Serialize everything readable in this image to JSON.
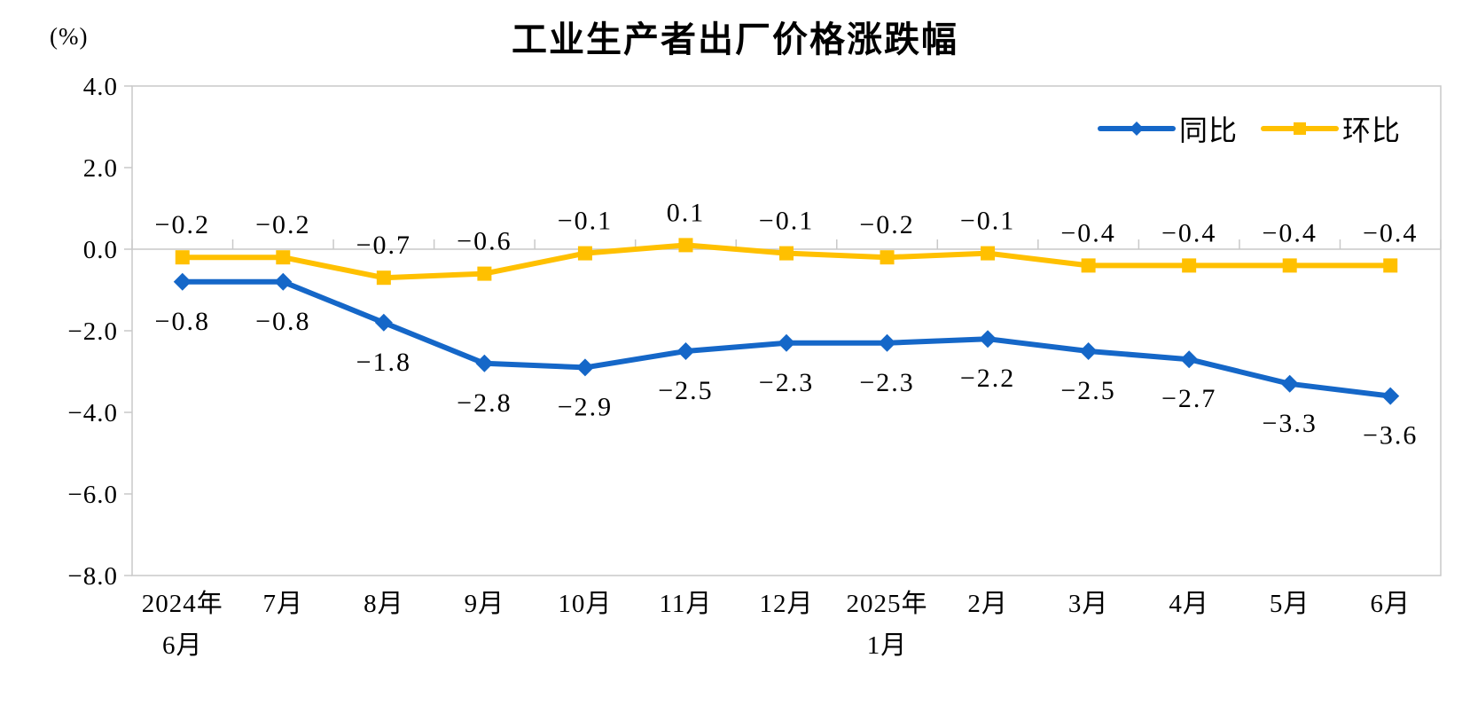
{
  "title": "工业生产者出厂价格涨跌幅",
  "unit_label": "(%)",
  "colors": {
    "series_yoy": "#1567C8",
    "series_mom": "#FFC000",
    "axis_gray": "#C9C9C9",
    "text": "#000000"
  },
  "chart_data": {
    "type": "line",
    "title": "工业生产者出厂价格涨跌幅",
    "unit_label": "(%)",
    "categories": [
      "2024年\n6月",
      "7月",
      "8月",
      "9月",
      "10月",
      "11月",
      "12月",
      "2025年\n1月",
      "2月",
      "3月",
      "4月",
      "5月",
      "6月"
    ],
    "series": [
      {
        "name": "同比",
        "color": "#1567C8",
        "marker": "diamond",
        "label_position": "below",
        "values": [
          -0.8,
          -0.8,
          -1.8,
          -2.8,
          -2.9,
          -2.5,
          -2.3,
          -2.3,
          -2.2,
          -2.5,
          -2.7,
          -3.3,
          -3.6
        ]
      },
      {
        "name": "环比",
        "color": "#FFC000",
        "marker": "square",
        "label_position": "above",
        "values": [
          -0.2,
          -0.2,
          -0.7,
          -0.6,
          -0.1,
          0.1,
          -0.1,
          -0.2,
          -0.1,
          -0.4,
          -0.4,
          -0.4,
          -0.4
        ]
      }
    ],
    "ylim": [
      -8.0,
      4.0
    ],
    "ytick_step": 2.0,
    "yticks": [
      "4.0",
      "2.0",
      "0.0",
      "-2.0",
      "-4.0",
      "-6.0",
      "-8.0"
    ],
    "grid": "zero-line-only",
    "legend_position": "top-right",
    "data_labels": true,
    "xlabel": "",
    "ylabel": "(%)"
  }
}
